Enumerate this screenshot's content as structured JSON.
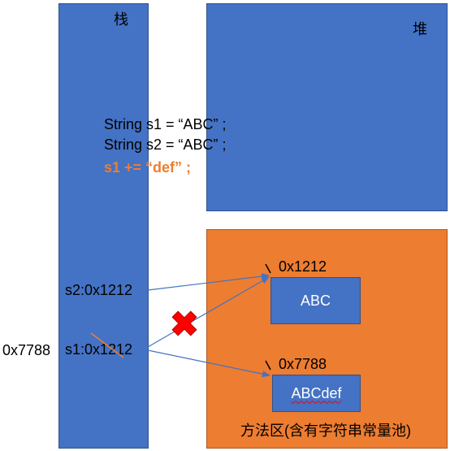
{
  "stack": {
    "label": "栈"
  },
  "heap": {
    "label": "堆"
  },
  "code": {
    "line1": "String s1 =   “ABC” ;",
    "line2": "String s2 =   “ABC” ;",
    "line3": "s1 +=  “def” ;"
  },
  "stack_vars": {
    "s2": "s2:0x1212",
    "s1": "s1:0x1212",
    "s1_new_addr": "0x7788"
  },
  "method_area": {
    "label": "方法区(含有字符串常量池)",
    "objects": [
      {
        "address": "0x1212",
        "value": "ABC"
      },
      {
        "address": "0x7788",
        "value": "ABCdef"
      }
    ]
  },
  "colors": {
    "blue": "#4472c4",
    "orange": "#ed7d31",
    "arrow": "#4472c4",
    "cross": "#ff0000"
  }
}
